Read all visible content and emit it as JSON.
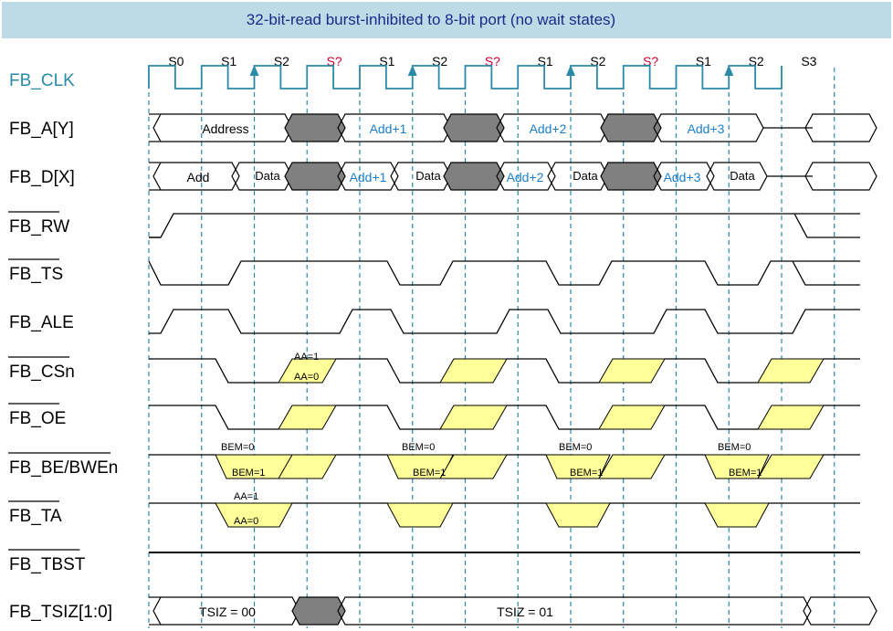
{
  "title": "32-bit-read burst-inhibited to 8-bit port (no wait states)",
  "states": [
    {
      "label": "S0",
      "unknown": false
    },
    {
      "label": "S1",
      "unknown": false
    },
    {
      "label": "S2",
      "unknown": false
    },
    {
      "label": "S?",
      "unknown": true
    },
    {
      "label": "S1",
      "unknown": false
    },
    {
      "label": "S2",
      "unknown": false
    },
    {
      "label": "S?",
      "unknown": true
    },
    {
      "label": "S1",
      "unknown": false
    },
    {
      "label": "S2",
      "unknown": false
    },
    {
      "label": "S?",
      "unknown": true
    },
    {
      "label": "S1",
      "unknown": false
    },
    {
      "label": "S2",
      "unknown": false
    },
    {
      "label": "S3",
      "unknown": false
    }
  ],
  "signals": [
    {
      "name": "FB_CLK",
      "overbar": false
    },
    {
      "name": "FB_A[Y]",
      "overbar": false
    },
    {
      "name": "FB_D[X]",
      "overbar": false
    },
    {
      "name": "FB_RW",
      "overbar": true
    },
    {
      "name": "FB_TS",
      "overbar": true
    },
    {
      "name": "FB_ALE",
      "overbar": false
    },
    {
      "name": "FB_CSn",
      "overbar": true
    },
    {
      "name": "FB_OE",
      "overbar": true
    },
    {
      "name": "FB_BE/BWEn",
      "overbar": true
    },
    {
      "name": "FB_TA",
      "overbar": true
    },
    {
      "name": "FB_TBST",
      "overbar": true
    },
    {
      "name": "FB_TSIZ[1:0]",
      "overbar": false
    }
  ],
  "address_bus": [
    "Address",
    "Add+1",
    "Add+2",
    "Add+3"
  ],
  "data_bus": [
    "Add",
    "Data",
    "Add+1",
    "Data",
    "Add+2",
    "Data",
    "Add+3",
    "Data"
  ],
  "tsiz_bus": [
    "TSIZ = 00",
    "TSIZ = 01"
  ],
  "annotations": {
    "aa_high": "AA=1",
    "aa_low": "AA=0",
    "bem_high": "BEM=0",
    "bem_low": "BEM=1"
  },
  "colors": {
    "clock": "#2a8aa8",
    "dashed_line": "#2a8aa8",
    "bus_fill": "#808080",
    "hatch_fill": "#ffff99",
    "title_bg": "#bcdbe6",
    "title_text": "#1b2a8a",
    "add_text": "#1a7fd0",
    "unknown_state": "#cc0033"
  }
}
